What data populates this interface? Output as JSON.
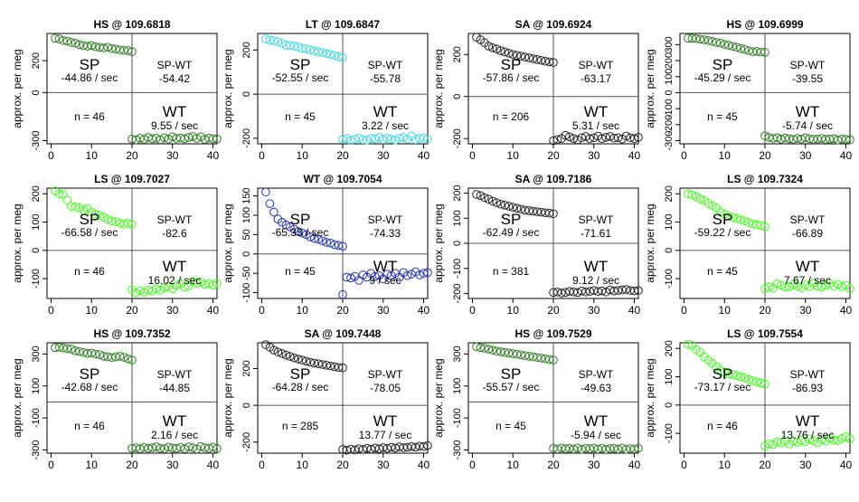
{
  "chart_data": [
    {
      "type": "scatter",
      "title": "HS @ 109.6818",
      "ylabel": "approx. per meg",
      "color": "#2e7d22",
      "ylim": [
        -320,
        370
      ],
      "yticks": [
        -300,
        0,
        200
      ],
      "xticks": [
        0,
        10,
        20,
        30,
        40
      ],
      "xlim": [
        -1,
        41
      ],
      "sp_rate": "-44.86 / sec",
      "diff_value": "-54.42",
      "n_label": "n = 46",
      "wt_rate": "9.55 / sec",
      "sp_values": [
        340,
        336,
        326,
        322,
        314,
        309,
        300,
        294,
        290,
        294,
        287,
        283,
        280,
        284,
        276,
        272,
        268,
        264,
        262,
        256
      ],
      "wt_values": [
        -290,
        -295,
        -285,
        -292,
        -280,
        -288,
        -285,
        -294,
        -282,
        -290,
        -276,
        -286,
        -284,
        -288,
        -280,
        -274,
        -286,
        -276,
        -292,
        -284,
        -288,
        -290
      ]
    },
    {
      "type": "scatter",
      "title": "LT @ 109.6847",
      "ylabel": "approx. per meg",
      "color": "#3fd8e0",
      "ylim": [
        -225,
        275
      ],
      "yticks": [
        -200,
        0,
        200
      ],
      "xticks": [
        0,
        10,
        20,
        30,
        40
      ],
      "xlim": [
        -1,
        41
      ],
      "sp_rate": "-52.55 / sec",
      "diff_value": "-55.78",
      "n_label": "n = 45",
      "wt_rate": "3.22 / sec",
      "sp_values": [
        250,
        245,
        242,
        238,
        230,
        222,
        220,
        218,
        214,
        208,
        205,
        200,
        196,
        192,
        188,
        184,
        180,
        176,
        170,
        166
      ],
      "wt_values": [
        -205,
        -200,
        -210,
        -204,
        -198,
        -206,
        -208,
        -200,
        -202,
        -196,
        -206,
        -198,
        -204,
        -208,
        -200,
        -196,
        -204,
        -190,
        -206,
        -200,
        -198,
        -204
      ]
    },
    {
      "type": "scatter",
      "title": "SA @ 109.6924",
      "ylabel": "approx. per meg",
      "color": "#222222",
      "ylim": [
        -225,
        300
      ],
      "yticks": [
        -200,
        0,
        200
      ],
      "xticks": [
        0,
        10,
        20,
        30,
        40
      ],
      "xlim": [
        -1,
        41
      ],
      "sp_rate": "-57.86 / sec",
      "diff_value": "-63.17",
      "n_label": "n = 206",
      "wt_rate": "5.31 / sec",
      "sp_values": [
        282,
        270,
        256,
        240,
        232,
        226,
        218,
        212,
        206,
        200,
        196,
        192,
        188,
        184,
        180,
        176,
        172,
        168,
        165,
        162
      ],
      "wt_values": [
        -210,
        -205,
        -200,
        -185,
        -192,
        -200,
        -206,
        -196,
        -190,
        -200,
        -196,
        -188,
        -200,
        -194,
        -190,
        -198,
        -196,
        -202,
        -188,
        -196,
        -200,
        -194
      ]
    },
    {
      "type": "scatter",
      "title": "HS @ 109.6999",
      "ylabel": "approx. per meg",
      "color": "#2e7d22",
      "ylim": [
        -320,
        370
      ],
      "yticks": [
        -300,
        -200,
        -100,
        0,
        100,
        200,
        300
      ],
      "xticks": [
        0,
        10,
        20,
        30,
        40
      ],
      "xlim": [
        -1,
        41
      ],
      "sp_rate": "-45.29 / sec",
      "diff_value": "-39.55",
      "n_label": "n = 45",
      "wt_rate": "-5.74 / sec",
      "sp_values": [
        340,
        340,
        338,
        334,
        330,
        326,
        320,
        314,
        310,
        302,
        296,
        290,
        284,
        276,
        270,
        262,
        256,
        258,
        254,
        252
      ],
      "wt_values": [
        -270,
        -280,
        -286,
        -282,
        -290,
        -284,
        -288,
        -292,
        -286,
        -290,
        -282,
        -288,
        -292,
        -290,
        -286,
        -292,
        -290,
        -288,
        -296,
        -290,
        -292,
        -294
      ]
    },
    {
      "type": "scatter",
      "title": "LS @ 109.7027",
      "ylabel": "approx. per meg",
      "color": "#3cff14",
      "ylim": [
        -170,
        220
      ],
      "yticks": [
        -100,
        0,
        100,
        200
      ],
      "xticks": [
        0,
        10,
        20,
        30,
        40
      ],
      "xlim": [
        -1,
        41
      ],
      "sp_rate": "-66.58 / sec",
      "diff_value": "-82.6",
      "n_label": "n = 46",
      "wt_rate": "16.02 / sec",
      "sp_values": [
        210,
        200,
        198,
        178,
        156,
        154,
        150,
        142,
        148,
        136,
        128,
        124,
        118,
        110,
        104,
        102,
        96,
        92,
        96,
        92
      ],
      "wt_values": [
        -138,
        -150,
        -142,
        -148,
        -140,
        -144,
        -136,
        -140,
        -132,
        -128,
        -136,
        -124,
        -118,
        -130,
        -126,
        -110,
        -116,
        -112,
        -120,
        -118,
        -124,
        -116
      ]
    },
    {
      "type": "scatter",
      "title": "WT @ 109.7054",
      "ylabel": "approx. per meg",
      "color": "#2233bb",
      "ylim": [
        -115,
        170
      ],
      "yticks": [
        -100,
        -50,
        0,
        50,
        100,
        150
      ],
      "xticks": [
        0,
        10,
        20,
        30,
        40
      ],
      "xlim": [
        -1,
        41
      ],
      "sp_rate": "-65.33 / sec",
      "diff_value": "-74.33",
      "n_label": "n = 45",
      "wt_rate": "9 / sec",
      "sp_values": [
        160,
        130,
        108,
        90,
        82,
        75,
        70,
        64,
        58,
        54,
        50,
        44,
        40,
        38,
        34,
        30,
        28,
        24,
        22,
        20
      ],
      "wt_values": [
        -105,
        -60,
        -62,
        -58,
        -68,
        -54,
        -60,
        -50,
        -58,
        -56,
        -64,
        -52,
        -56,
        -50,
        -60,
        -48,
        -56,
        -52,
        -46,
        -54,
        -50,
        -48
      ]
    },
    {
      "type": "scatter",
      "title": "SA @ 109.7186",
      "ylabel": "approx. per meg",
      "color": "#222222",
      "ylim": [
        -220,
        220
      ],
      "yticks": [
        -200,
        -100,
        0,
        100,
        200
      ],
      "xticks": [
        0,
        10,
        20,
        30,
        40
      ],
      "xlim": [
        -1,
        41
      ],
      "sp_rate": "-62.49 / sec",
      "diff_value": "-71.61",
      "n_label": "n = 381",
      "wt_rate": "9.12 / sec",
      "sp_values": [
        195,
        190,
        182,
        176,
        168,
        162,
        156,
        152,
        148,
        144,
        140,
        136,
        132,
        130,
        128,
        126,
        124,
        122,
        120,
        118
      ],
      "wt_values": [
        -196,
        -194,
        -198,
        -196,
        -192,
        -194,
        -196,
        -190,
        -194,
        -192,
        -188,
        -192,
        -190,
        -194,
        -186,
        -190,
        -188,
        -186,
        -184,
        -188,
        -190,
        -188
      ]
    },
    {
      "type": "scatter",
      "title": "LS @ 109.7324",
      "ylabel": "approx. per meg",
      "color": "#3cff14",
      "ylim": [
        -170,
        220
      ],
      "yticks": [
        -100,
        0,
        100,
        200
      ],
      "xticks": [
        0,
        10,
        20,
        30,
        40
      ],
      "xlim": [
        -1,
        41
      ],
      "sp_rate": "-59.22 / sec",
      "diff_value": "-66.89",
      "n_label": "n = 45",
      "wt_rate": "7.67 / sec",
      "sp_values": [
        200,
        196,
        190,
        182,
        176,
        166,
        158,
        150,
        136,
        128,
        120,
        116,
        112,
        108,
        104,
        98,
        94,
        90,
        88,
        84
      ],
      "wt_values": [
        -136,
        -128,
        -134,
        -118,
        -124,
        -130,
        -128,
        -120,
        -126,
        -132,
        -122,
        -128,
        -116,
        -126,
        -130,
        -124,
        -118,
        -126,
        -120,
        -128,
        -124,
        -136
      ]
    },
    {
      "type": "scatter",
      "title": "HS @ 109.7352",
      "ylabel": "approx. per meg",
      "color": "#2e7d22",
      "ylim": [
        -320,
        370
      ],
      "yticks": [
        -300,
        -100,
        100,
        300
      ],
      "xticks": [
        0,
        10,
        20,
        30,
        40
      ],
      "xlim": [
        -1,
        41
      ],
      "sp_rate": "-42.68 / sec",
      "diff_value": "-44.85",
      "n_label": "n = 46",
      "wt_rate": "2.16 / sec",
      "sp_values": [
        340,
        342,
        338,
        334,
        330,
        320,
        316,
        310,
        304,
        306,
        300,
        296,
        286,
        282,
        278,
        282,
        286,
        280,
        270,
        262
      ],
      "wt_values": [
        -290,
        -286,
        -292,
        -284,
        -290,
        -286,
        -280,
        -290,
        -292,
        -282,
        -288,
        -290,
        -284,
        -292,
        -280,
        -286,
        -294,
        -278,
        -286,
        -290,
        -282,
        -292
      ]
    },
    {
      "type": "scatter",
      "title": "SA @ 109.7448",
      "ylabel": "approx. per meg",
      "color": "#222222",
      "ylim": [
        -260,
        340
      ],
      "yticks": [
        -200,
        0,
        200
      ],
      "xticks": [
        0,
        10,
        20,
        30,
        40
      ],
      "xlim": [
        -1,
        41
      ],
      "sp_rate": "-64.28 / sec",
      "diff_value": "-78.05",
      "n_label": "n = 285",
      "wt_rate": "13.77 / sec",
      "sp_values": [
        330,
        316,
        300,
        290,
        282,
        274,
        266,
        258,
        252,
        246,
        240,
        234,
        230,
        226,
        222,
        218,
        214,
        210,
        206,
        204
      ],
      "wt_values": [
        -240,
        -244,
        -238,
        -242,
        -236,
        -240,
        -234,
        -238,
        -232,
        -236,
        -230,
        -234,
        -228,
        -232,
        -226,
        -230,
        -228,
        -224,
        -228,
        -222,
        -224,
        -218
      ]
    },
    {
      "type": "scatter",
      "title": "HS @ 109.7529",
      "ylabel": "approx. per meg",
      "color": "#2e7d22",
      "ylim": [
        -320,
        370
      ],
      "yticks": [
        -300,
        -100,
        100,
        300
      ],
      "xticks": [
        0,
        10,
        20,
        30,
        40
      ],
      "xlim": [
        -1,
        41
      ],
      "sp_rate": "-55.57 / sec",
      "diff_value": "-49.63",
      "n_label": "n = 45",
      "wt_rate": "-5.94 / sec",
      "sp_values": [
        345,
        340,
        336,
        330,
        324,
        318,
        314,
        310,
        306,
        302,
        298,
        294,
        290,
        286,
        282,
        278,
        274,
        270,
        266,
        262
      ],
      "wt_values": [
        -290,
        -294,
        -288,
        -292,
        -290,
        -294,
        -288,
        -296,
        -290,
        -292,
        -288,
        -294,
        -290,
        -296,
        -292,
        -290,
        -294,
        -288,
        -296,
        -292,
        -294,
        -290
      ]
    },
    {
      "type": "scatter",
      "title": "LS @ 109.7554",
      "ylabel": "approx. per meg",
      "color": "#3cff14",
      "ylim": [
        -170,
        220
      ],
      "yticks": [
        -100,
        0,
        100,
        200
      ],
      "xticks": [
        0,
        10,
        20,
        30,
        40
      ],
      "xlim": [
        -1,
        41
      ],
      "sp_rate": "-73.17 / sec",
      "diff_value": "-86.93",
      "n_label": "n = 46",
      "wt_rate": "13.76 / sec",
      "sp_values": [
        215,
        210,
        196,
        186,
        170,
        158,
        148,
        136,
        124,
        116,
        110,
        108,
        104,
        100,
        96,
        90,
        86,
        82,
        78,
        74
      ],
      "wt_values": [
        -145,
        -136,
        -140,
        -130,
        -134,
        -126,
        -138,
        -128,
        -132,
        -124,
        -130,
        -120,
        -126,
        -134,
        -122,
        -128,
        -118,
        -124,
        -126,
        -118,
        -112,
        -120
      ]
    }
  ],
  "labels": {
    "sp": "SP",
    "wt": "WT",
    "sp_wt": "SP-WT"
  }
}
